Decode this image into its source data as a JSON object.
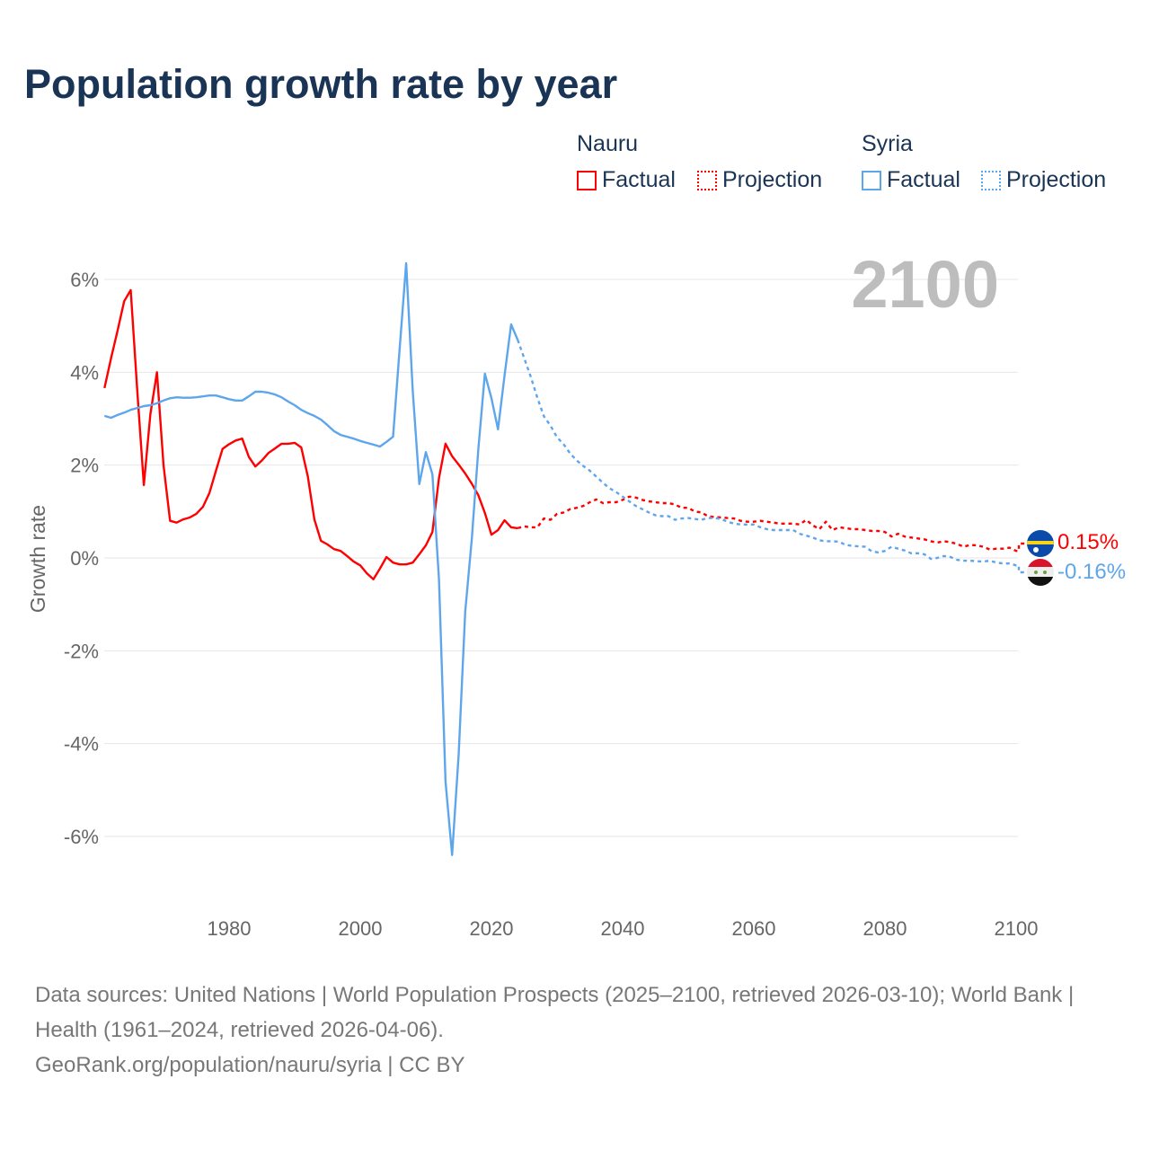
{
  "title": "Population growth rate by year",
  "legend": {
    "groups": [
      {
        "name": "Nauru",
        "factual": "Factual",
        "projection": "Projection",
        "color": "#ff0000"
      },
      {
        "name": "Syria",
        "factual": "Factual",
        "projection": "Projection",
        "color": "#5ea6ec"
      }
    ]
  },
  "year_watermark": "2100",
  "footer": {
    "sources": "Data sources: United Nations | World Population Prospects (2025–2100, retrieved 2026-03-10); World Bank | Health (1961–2024, retrieved 2026-04-06).",
    "link": "GeoRank.org/population/nauru/syria | CC BY"
  },
  "chart_data": {
    "type": "line",
    "title": "Population growth rate by year",
    "xlabel": "",
    "ylabel": "Growth rate",
    "xlim": [
      1961,
      2100
    ],
    "ylim": [
      -7.3,
      7.5
    ],
    "xticks": [
      1980,
      2000,
      2020,
      2040,
      2060,
      2080,
      2100
    ],
    "xtick_labels": [
      "1980",
      "2000",
      "2020",
      "2040",
      "2060",
      "2080",
      "2100"
    ],
    "yticks": [
      -6,
      -4,
      -2,
      0,
      2,
      4,
      6
    ],
    "ytick_labels": [
      "-6%",
      "-4%",
      "-2%",
      "0%",
      "2%",
      "4%",
      "6%"
    ],
    "grid": true,
    "legend_position": "top-right",
    "end_labels": {
      "Nauru": "0.15%",
      "Syria": "-0.16%"
    },
    "series": [
      {
        "name": "Nauru",
        "kind": "factual",
        "color": "#ff0000",
        "x_start": 1961,
        "values": [
          3.66,
          4.3,
          4.9,
          5.53,
          5.77,
          3.6,
          1.57,
          3.1,
          4.0,
          2.0,
          0.8,
          0.76,
          0.83,
          0.87,
          0.95,
          1.1,
          1.4,
          1.88,
          2.35,
          2.45,
          2.53,
          2.57,
          2.18,
          1.97,
          2.1,
          2.26,
          2.36,
          2.46,
          2.46,
          2.48,
          2.38,
          1.76,
          0.83,
          0.37,
          0.29,
          0.19,
          0.15,
          0.04,
          -0.08,
          -0.16,
          -0.33,
          -0.46,
          -0.23,
          0.02,
          -0.1,
          -0.14,
          -0.14,
          -0.1,
          0.08,
          0.27,
          0.56,
          1.72,
          2.46,
          2.19,
          2.01,
          1.82,
          1.6,
          1.35,
          0.97,
          0.5,
          0.6,
          0.81,
          0.66,
          0.64
        ]
      },
      {
        "name": "Nauru",
        "kind": "projection",
        "color": "#ff0000",
        "x_start": 2024,
        "values": [
          0.64,
          0.68,
          0.66,
          0.66,
          0.85,
          0.82,
          0.95,
          0.98,
          1.05,
          1.08,
          1.12,
          1.2,
          1.26,
          1.18,
          1.2,
          1.2,
          1.25,
          1.32,
          1.3,
          1.25,
          1.22,
          1.2,
          1.18,
          1.18,
          1.15,
          1.08,
          1.08,
          1.0,
          0.98,
          0.9,
          0.88,
          0.87,
          0.86,
          0.85,
          0.8,
          0.78,
          0.78,
          0.8,
          0.78,
          0.76,
          0.74,
          0.74,
          0.74,
          0.72,
          0.82,
          0.7,
          0.62,
          0.78,
          0.6,
          0.66,
          0.64,
          0.62,
          0.62,
          0.6,
          0.58,
          0.58,
          0.56,
          0.46,
          0.52,
          0.46,
          0.44,
          0.42,
          0.4,
          0.36,
          0.33,
          0.36,
          0.34,
          0.3,
          0.24,
          0.28,
          0.27,
          0.24,
          0.18,
          0.2,
          0.2,
          0.22,
          0.15
        ]
      },
      {
        "name": "Syria",
        "kind": "factual",
        "color": "#5ea6ec",
        "x_start": 1961,
        "values": [
          3.06,
          3.02,
          3.08,
          3.13,
          3.19,
          3.23,
          3.27,
          3.29,
          3.33,
          3.39,
          3.44,
          3.46,
          3.45,
          3.45,
          3.46,
          3.48,
          3.5,
          3.5,
          3.46,
          3.42,
          3.39,
          3.39,
          3.48,
          3.58,
          3.58,
          3.56,
          3.52,
          3.46,
          3.37,
          3.29,
          3.19,
          3.12,
          3.06,
          2.98,
          2.86,
          2.73,
          2.65,
          2.61,
          2.57,
          2.52,
          2.48,
          2.44,
          2.4,
          2.5,
          2.61,
          4.5,
          6.35,
          3.6,
          1.59,
          2.28,
          1.8,
          -0.46,
          -4.82,
          -6.4,
          -4.24,
          -1.16,
          0.4,
          2.34,
          3.97,
          3.44,
          2.77,
          3.93,
          5.03,
          4.7
        ]
      },
      {
        "name": "Syria",
        "kind": "projection",
        "color": "#5ea6ec",
        "x_start": 2024,
        "values": [
          4.7,
          4.3,
          3.9,
          3.45,
          3.05,
          2.85,
          2.6,
          2.45,
          2.25,
          2.1,
          1.98,
          1.88,
          1.75,
          1.62,
          1.5,
          1.42,
          1.32,
          1.22,
          1.12,
          1.05,
          0.98,
          0.92,
          0.9,
          0.9,
          0.82,
          0.85,
          0.86,
          0.84,
          0.82,
          0.86,
          0.86,
          0.84,
          0.78,
          0.74,
          0.72,
          0.72,
          0.72,
          0.66,
          0.62,
          0.6,
          0.6,
          0.6,
          0.6,
          0.52,
          0.48,
          0.44,
          0.38,
          0.36,
          0.36,
          0.35,
          0.28,
          0.26,
          0.25,
          0.24,
          0.14,
          0.12,
          0.15,
          0.24,
          0.2,
          0.16,
          0.1,
          0.1,
          0.08,
          -0.02,
          0.0,
          0.04,
          0.02,
          -0.04,
          -0.06,
          -0.06,
          -0.07,
          -0.08,
          -0.06,
          -0.1,
          -0.12,
          -0.12,
          -0.16
        ]
      }
    ]
  }
}
